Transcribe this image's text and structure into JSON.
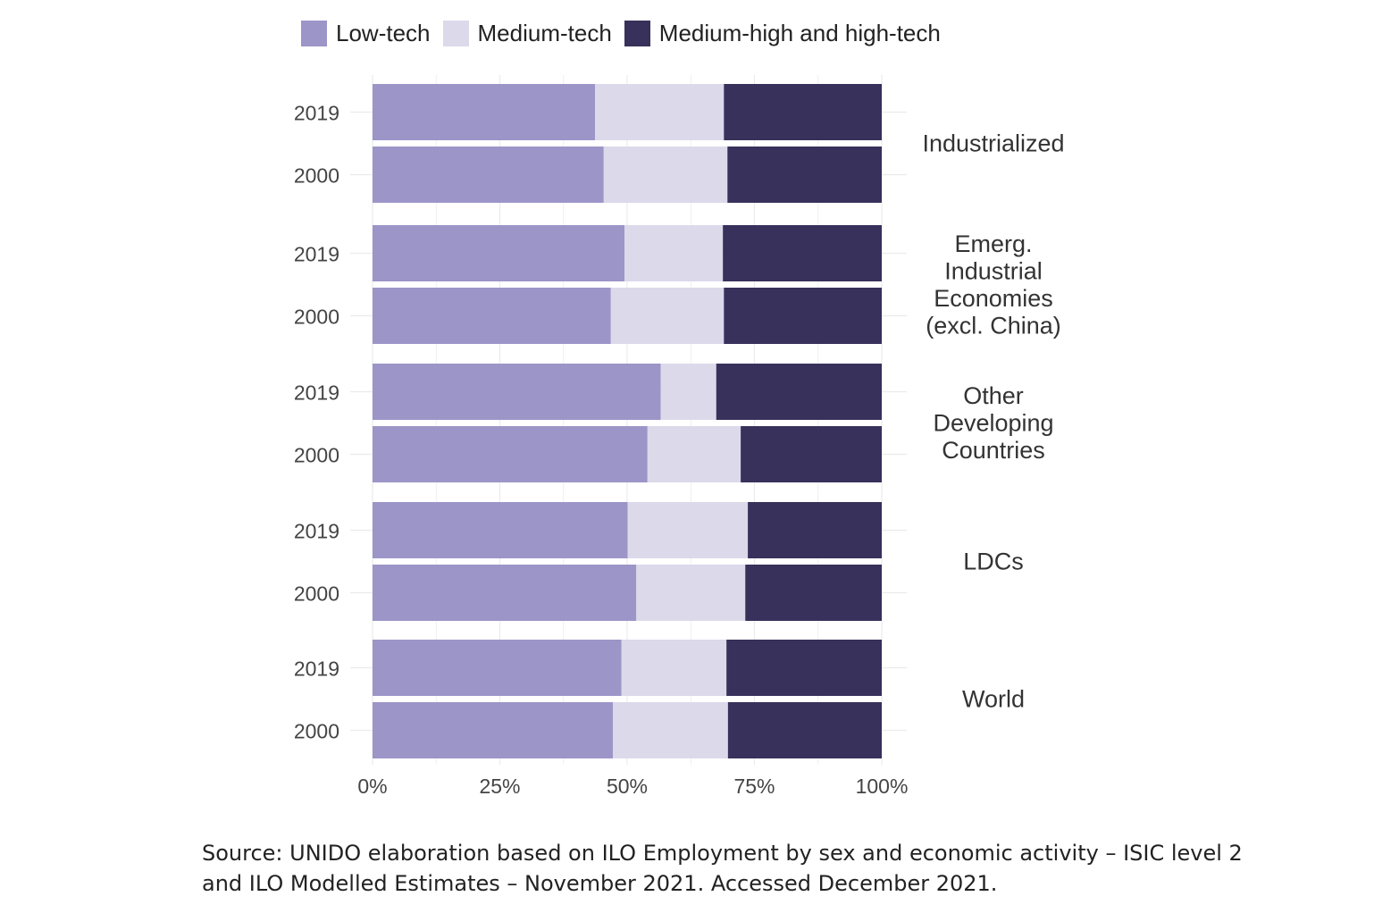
{
  "chart_data": {
    "type": "bar",
    "orientation": "horizontal",
    "stacked": "percent",
    "legend_position": "top",
    "series": [
      {
        "name": "Low-tech",
        "color": "#9c95c8"
      },
      {
        "name": "Medium-tech",
        "color": "#dcd9ea"
      },
      {
        "name": "Medium-high and high-tech",
        "color": "#37315b"
      }
    ],
    "groups": [
      {
        "name": "Industrialized",
        "lines": [
          "Industrialized"
        ],
        "rows": [
          {
            "year": "2019",
            "values": [
              43.7,
              25.3,
              31.0
            ]
          },
          {
            "year": "2000",
            "values": [
              45.4,
              24.3,
              30.3
            ]
          }
        ]
      },
      {
        "name": "Emerg. Industrial Economies (excl. China)",
        "lines": [
          "Emerg.",
          "Industrial",
          "Economies",
          "(excl. China)"
        ],
        "rows": [
          {
            "year": "2019",
            "values": [
              49.5,
              19.3,
              31.2
            ]
          },
          {
            "year": "2000",
            "values": [
              46.8,
              22.2,
              31.0
            ]
          }
        ]
      },
      {
        "name": "Other Developing Countries",
        "lines": [
          "Other",
          "Developing",
          "Countries"
        ],
        "rows": [
          {
            "year": "2019",
            "values": [
              56.6,
              10.9,
              32.5
            ]
          },
          {
            "year": "2000",
            "values": [
              54.0,
              18.3,
              27.7
            ]
          }
        ]
      },
      {
        "name": "LDCs",
        "lines": [
          "LDCs"
        ],
        "rows": [
          {
            "year": "2019",
            "values": [
              50.1,
              23.6,
              26.3
            ]
          },
          {
            "year": "2000",
            "values": [
              51.8,
              21.4,
              26.8
            ]
          }
        ]
      },
      {
        "name": "World",
        "lines": [
          "World"
        ],
        "rows": [
          {
            "year": "2019",
            "values": [
              48.9,
              20.6,
              30.5
            ]
          },
          {
            "year": "2000",
            "values": [
              47.2,
              22.6,
              30.2
            ]
          }
        ]
      }
    ],
    "x_ticks": [
      "0%",
      "25%",
      "50%",
      "75%",
      "100%"
    ],
    "xlim": [
      0,
      100
    ],
    "grid": true
  },
  "source_text": "Source: UNIDO elaboration based on ILO Employment by sex and economic activity – ISIC level 2 and ILO Modelled Estimates – November 2021. Accessed December 2021."
}
